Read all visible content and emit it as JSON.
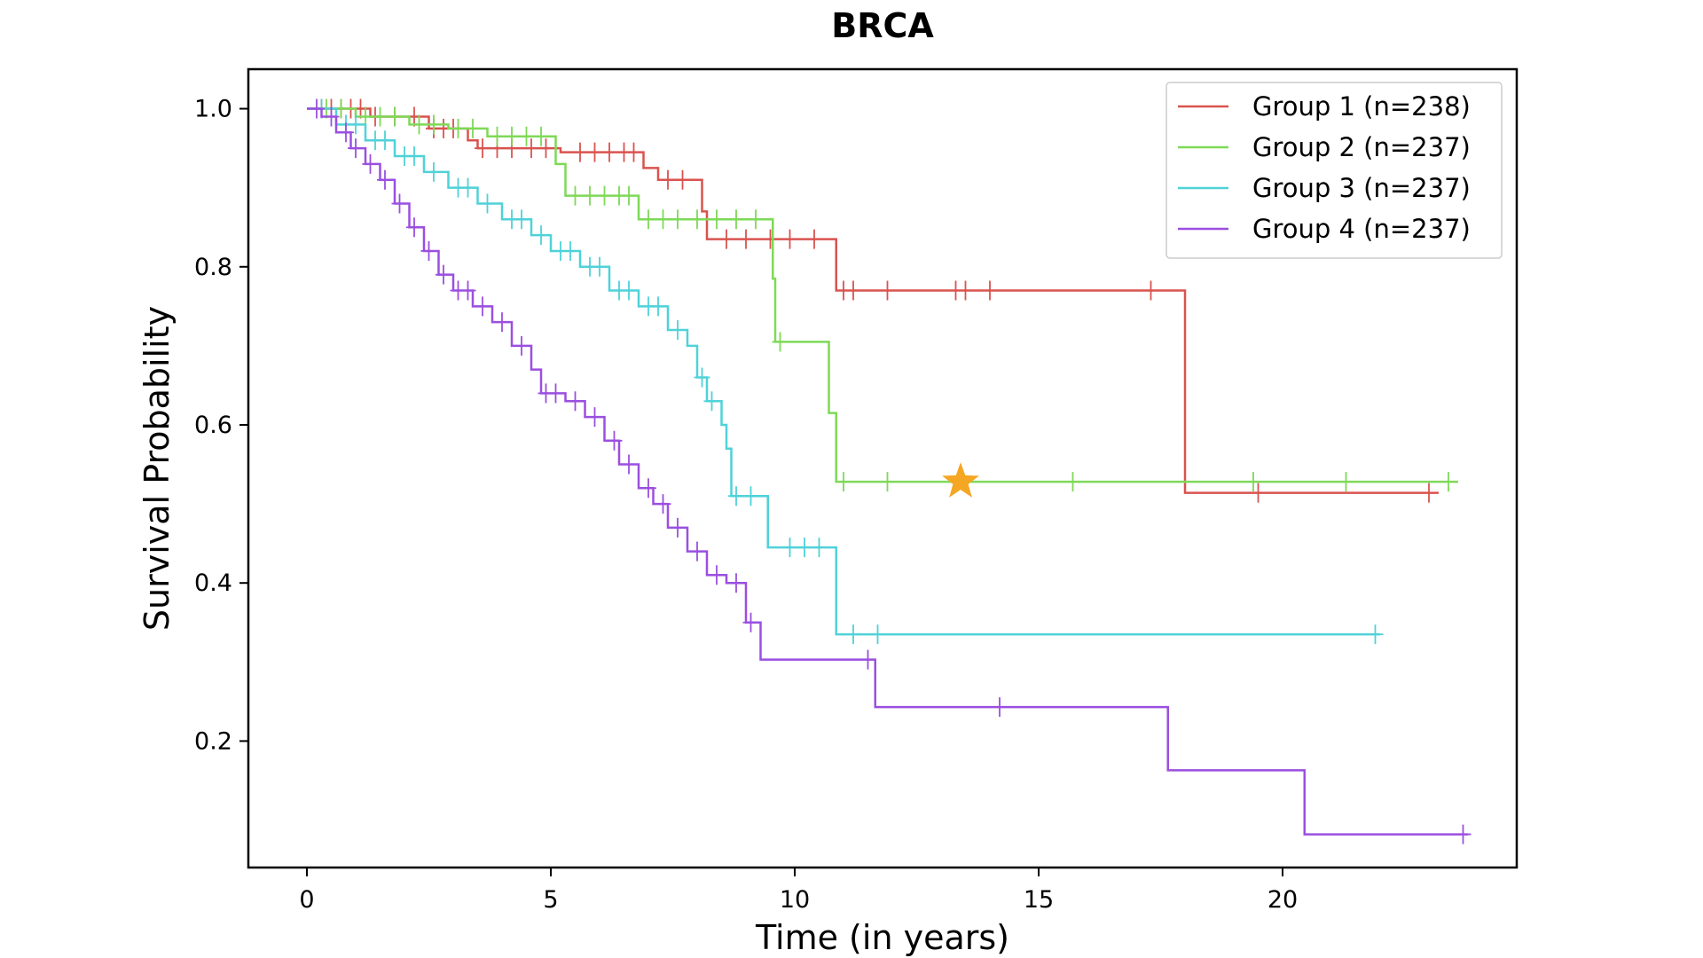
{
  "chart_data": {
    "type": "line",
    "subtype": "kaplan-meier",
    "title": "BRCA",
    "xlabel": "Time (in years)",
    "ylabel": "Survival Probability",
    "xlim": [
      -1.2,
      24.8
    ],
    "ylim": [
      0.04,
      1.05
    ],
    "xticks": [
      0,
      5,
      10,
      15,
      20
    ],
    "xtick_labels": [
      "0",
      "5",
      "10",
      "15",
      "20"
    ],
    "yticks": [
      0.2,
      0.4,
      0.6,
      0.8,
      1.0
    ],
    "ytick_labels": [
      "0.2",
      "0.4",
      "0.6",
      "0.8",
      "1.0"
    ],
    "grid": false,
    "legend_position": "top-right",
    "series": [
      {
        "name": "Group 1 (n=238)",
        "color": "#d9534f",
        "steps": [
          [
            0,
            1.0
          ],
          [
            1.3,
            0.99
          ],
          [
            2.5,
            0.975
          ],
          [
            3.3,
            0.96
          ],
          [
            3.5,
            0.95
          ],
          [
            5.2,
            0.945
          ],
          [
            6.9,
            0.925
          ],
          [
            7.2,
            0.91
          ],
          [
            8.1,
            0.87
          ],
          [
            8.2,
            0.835
          ],
          [
            10.8,
            0.835
          ],
          [
            10.85,
            0.77
          ],
          [
            18.0,
            0.77
          ],
          [
            18.0,
            0.514
          ],
          [
            23.2,
            0.514
          ]
        ],
        "censors": [
          [
            0.3,
            1.0
          ],
          [
            0.5,
            1.0
          ],
          [
            0.7,
            1.0
          ],
          [
            0.9,
            1.0
          ],
          [
            1.1,
            1.0
          ],
          [
            1.4,
            0.99
          ],
          [
            1.8,
            0.99
          ],
          [
            2.2,
            0.99
          ],
          [
            2.6,
            0.975
          ],
          [
            2.8,
            0.975
          ],
          [
            3.0,
            0.975
          ],
          [
            3.6,
            0.95
          ],
          [
            3.9,
            0.95
          ],
          [
            4.2,
            0.95
          ],
          [
            4.6,
            0.95
          ],
          [
            4.9,
            0.95
          ],
          [
            5.6,
            0.945
          ],
          [
            5.9,
            0.945
          ],
          [
            6.2,
            0.945
          ],
          [
            6.5,
            0.945
          ],
          [
            6.7,
            0.945
          ],
          [
            7.4,
            0.91
          ],
          [
            7.7,
            0.91
          ],
          [
            8.6,
            0.835
          ],
          [
            9.0,
            0.835
          ],
          [
            9.5,
            0.835
          ],
          [
            9.9,
            0.835
          ],
          [
            10.4,
            0.835
          ],
          [
            11.0,
            0.77
          ],
          [
            11.2,
            0.77
          ],
          [
            11.9,
            0.77
          ],
          [
            13.3,
            0.77
          ],
          [
            13.5,
            0.77
          ],
          [
            14.0,
            0.77
          ],
          [
            17.3,
            0.77
          ],
          [
            19.5,
            0.514
          ],
          [
            23.0,
            0.514
          ]
        ]
      },
      {
        "name": "Group 2 (n=237)",
        "color": "#7ed957",
        "steps": [
          [
            0,
            1.0
          ],
          [
            1.0,
            0.99
          ],
          [
            2.1,
            0.98
          ],
          [
            2.9,
            0.975
          ],
          [
            3.7,
            0.965
          ],
          [
            5.1,
            0.93
          ],
          [
            5.3,
            0.89
          ],
          [
            6.8,
            0.86
          ],
          [
            9.5,
            0.86
          ],
          [
            9.55,
            0.785
          ],
          [
            9.6,
            0.705
          ],
          [
            10.6,
            0.705
          ],
          [
            10.7,
            0.615
          ],
          [
            10.85,
            0.528
          ],
          [
            23.6,
            0.528
          ]
        ],
        "censors": [
          [
            0.4,
            1.0
          ],
          [
            0.7,
            1.0
          ],
          [
            1.2,
            0.99
          ],
          [
            1.5,
            0.99
          ],
          [
            1.8,
            0.99
          ],
          [
            2.3,
            0.98
          ],
          [
            2.6,
            0.98
          ],
          [
            3.1,
            0.975
          ],
          [
            3.4,
            0.975
          ],
          [
            3.9,
            0.965
          ],
          [
            4.2,
            0.965
          ],
          [
            4.5,
            0.965
          ],
          [
            4.8,
            0.965
          ],
          [
            5.5,
            0.89
          ],
          [
            5.8,
            0.89
          ],
          [
            6.1,
            0.89
          ],
          [
            6.4,
            0.89
          ],
          [
            6.6,
            0.89
          ],
          [
            7.0,
            0.86
          ],
          [
            7.3,
            0.86
          ],
          [
            7.6,
            0.86
          ],
          [
            8.0,
            0.86
          ],
          [
            8.4,
            0.86
          ],
          [
            8.8,
            0.86
          ],
          [
            9.2,
            0.86
          ],
          [
            9.7,
            0.705
          ],
          [
            11.0,
            0.528
          ],
          [
            11.9,
            0.528
          ],
          [
            15.7,
            0.528
          ],
          [
            19.4,
            0.528
          ],
          [
            21.3,
            0.528
          ],
          [
            23.4,
            0.528
          ]
        ]
      },
      {
        "name": "Group 3 (n=237)",
        "color": "#4fd2d8",
        "steps": [
          [
            0,
            1.0
          ],
          [
            0.6,
            0.98
          ],
          [
            1.2,
            0.96
          ],
          [
            1.8,
            0.94
          ],
          [
            2.4,
            0.92
          ],
          [
            2.9,
            0.9
          ],
          [
            3.5,
            0.88
          ],
          [
            4.0,
            0.86
          ],
          [
            4.6,
            0.84
          ],
          [
            5.0,
            0.82
          ],
          [
            5.6,
            0.8
          ],
          [
            6.2,
            0.77
          ],
          [
            6.8,
            0.75
          ],
          [
            7.4,
            0.72
          ],
          [
            7.8,
            0.7
          ],
          [
            8.0,
            0.66
          ],
          [
            8.2,
            0.63
          ],
          [
            8.5,
            0.6
          ],
          [
            8.6,
            0.57
          ],
          [
            8.7,
            0.51
          ],
          [
            9.4,
            0.51
          ],
          [
            9.45,
            0.445
          ],
          [
            10.8,
            0.445
          ],
          [
            10.85,
            0.335
          ],
          [
            22.0,
            0.335
          ]
        ],
        "censors": [
          [
            0.3,
            1.0
          ],
          [
            0.8,
            0.98
          ],
          [
            1.0,
            0.98
          ],
          [
            1.4,
            0.96
          ],
          [
            1.6,
            0.96
          ],
          [
            2.0,
            0.94
          ],
          [
            2.2,
            0.94
          ],
          [
            2.6,
            0.92
          ],
          [
            3.1,
            0.9
          ],
          [
            3.3,
            0.9
          ],
          [
            3.7,
            0.88
          ],
          [
            4.2,
            0.86
          ],
          [
            4.4,
            0.86
          ],
          [
            4.8,
            0.84
          ],
          [
            5.2,
            0.82
          ],
          [
            5.4,
            0.82
          ],
          [
            5.8,
            0.8
          ],
          [
            6.0,
            0.8
          ],
          [
            6.4,
            0.77
          ],
          [
            6.6,
            0.77
          ],
          [
            7.0,
            0.75
          ],
          [
            7.2,
            0.75
          ],
          [
            7.6,
            0.72
          ],
          [
            8.1,
            0.66
          ],
          [
            8.3,
            0.63
          ],
          [
            8.8,
            0.51
          ],
          [
            9.1,
            0.51
          ],
          [
            9.9,
            0.445
          ],
          [
            10.2,
            0.445
          ],
          [
            10.5,
            0.445
          ],
          [
            11.2,
            0.335
          ],
          [
            11.7,
            0.335
          ],
          [
            21.9,
            0.335
          ]
        ]
      },
      {
        "name": "Group 4 (n=237)",
        "color": "#9b4fe0",
        "steps": [
          [
            0,
            1.0
          ],
          [
            0.3,
            0.99
          ],
          [
            0.6,
            0.97
          ],
          [
            0.9,
            0.95
          ],
          [
            1.2,
            0.93
          ],
          [
            1.5,
            0.91
          ],
          [
            1.8,
            0.88
          ],
          [
            2.1,
            0.85
          ],
          [
            2.4,
            0.82
          ],
          [
            2.7,
            0.79
          ],
          [
            3.0,
            0.77
          ],
          [
            3.4,
            0.75
          ],
          [
            3.8,
            0.73
          ],
          [
            4.2,
            0.7
          ],
          [
            4.6,
            0.67
          ],
          [
            4.8,
            0.64
          ],
          [
            5.3,
            0.63
          ],
          [
            5.7,
            0.61
          ],
          [
            6.1,
            0.58
          ],
          [
            6.4,
            0.55
          ],
          [
            6.8,
            0.52
          ],
          [
            7.1,
            0.5
          ],
          [
            7.4,
            0.47
          ],
          [
            7.8,
            0.44
          ],
          [
            8.2,
            0.41
          ],
          [
            8.6,
            0.4
          ],
          [
            9.0,
            0.35
          ],
          [
            9.3,
            0.303
          ],
          [
            11.6,
            0.303
          ],
          [
            11.65,
            0.243
          ],
          [
            17.6,
            0.243
          ],
          [
            17.65,
            0.163
          ],
          [
            20.4,
            0.163
          ],
          [
            20.45,
            0.082
          ],
          [
            23.8,
            0.082
          ]
        ],
        "censors": [
          [
            0.2,
            1.0
          ],
          [
            0.5,
            0.99
          ],
          [
            0.8,
            0.97
          ],
          [
            1.0,
            0.95
          ],
          [
            1.3,
            0.93
          ],
          [
            1.6,
            0.91
          ],
          [
            1.9,
            0.88
          ],
          [
            2.2,
            0.85
          ],
          [
            2.5,
            0.82
          ],
          [
            2.8,
            0.79
          ],
          [
            3.1,
            0.77
          ],
          [
            3.3,
            0.77
          ],
          [
            3.6,
            0.75
          ],
          [
            4.0,
            0.73
          ],
          [
            4.4,
            0.7
          ],
          [
            4.9,
            0.64
          ],
          [
            5.1,
            0.64
          ],
          [
            5.5,
            0.63
          ],
          [
            5.9,
            0.61
          ],
          [
            6.3,
            0.58
          ],
          [
            6.6,
            0.55
          ],
          [
            7.0,
            0.52
          ],
          [
            7.3,
            0.5
          ],
          [
            7.6,
            0.47
          ],
          [
            8.0,
            0.44
          ],
          [
            8.4,
            0.41
          ],
          [
            8.8,
            0.4
          ],
          [
            9.1,
            0.35
          ],
          [
            11.5,
            0.303
          ],
          [
            14.2,
            0.243
          ],
          [
            23.7,
            0.082
          ]
        ]
      }
    ],
    "annotations": [
      {
        "type": "star-marker",
        "x": 13.4,
        "y": 0.528,
        "color": "#f5a623"
      }
    ]
  }
}
